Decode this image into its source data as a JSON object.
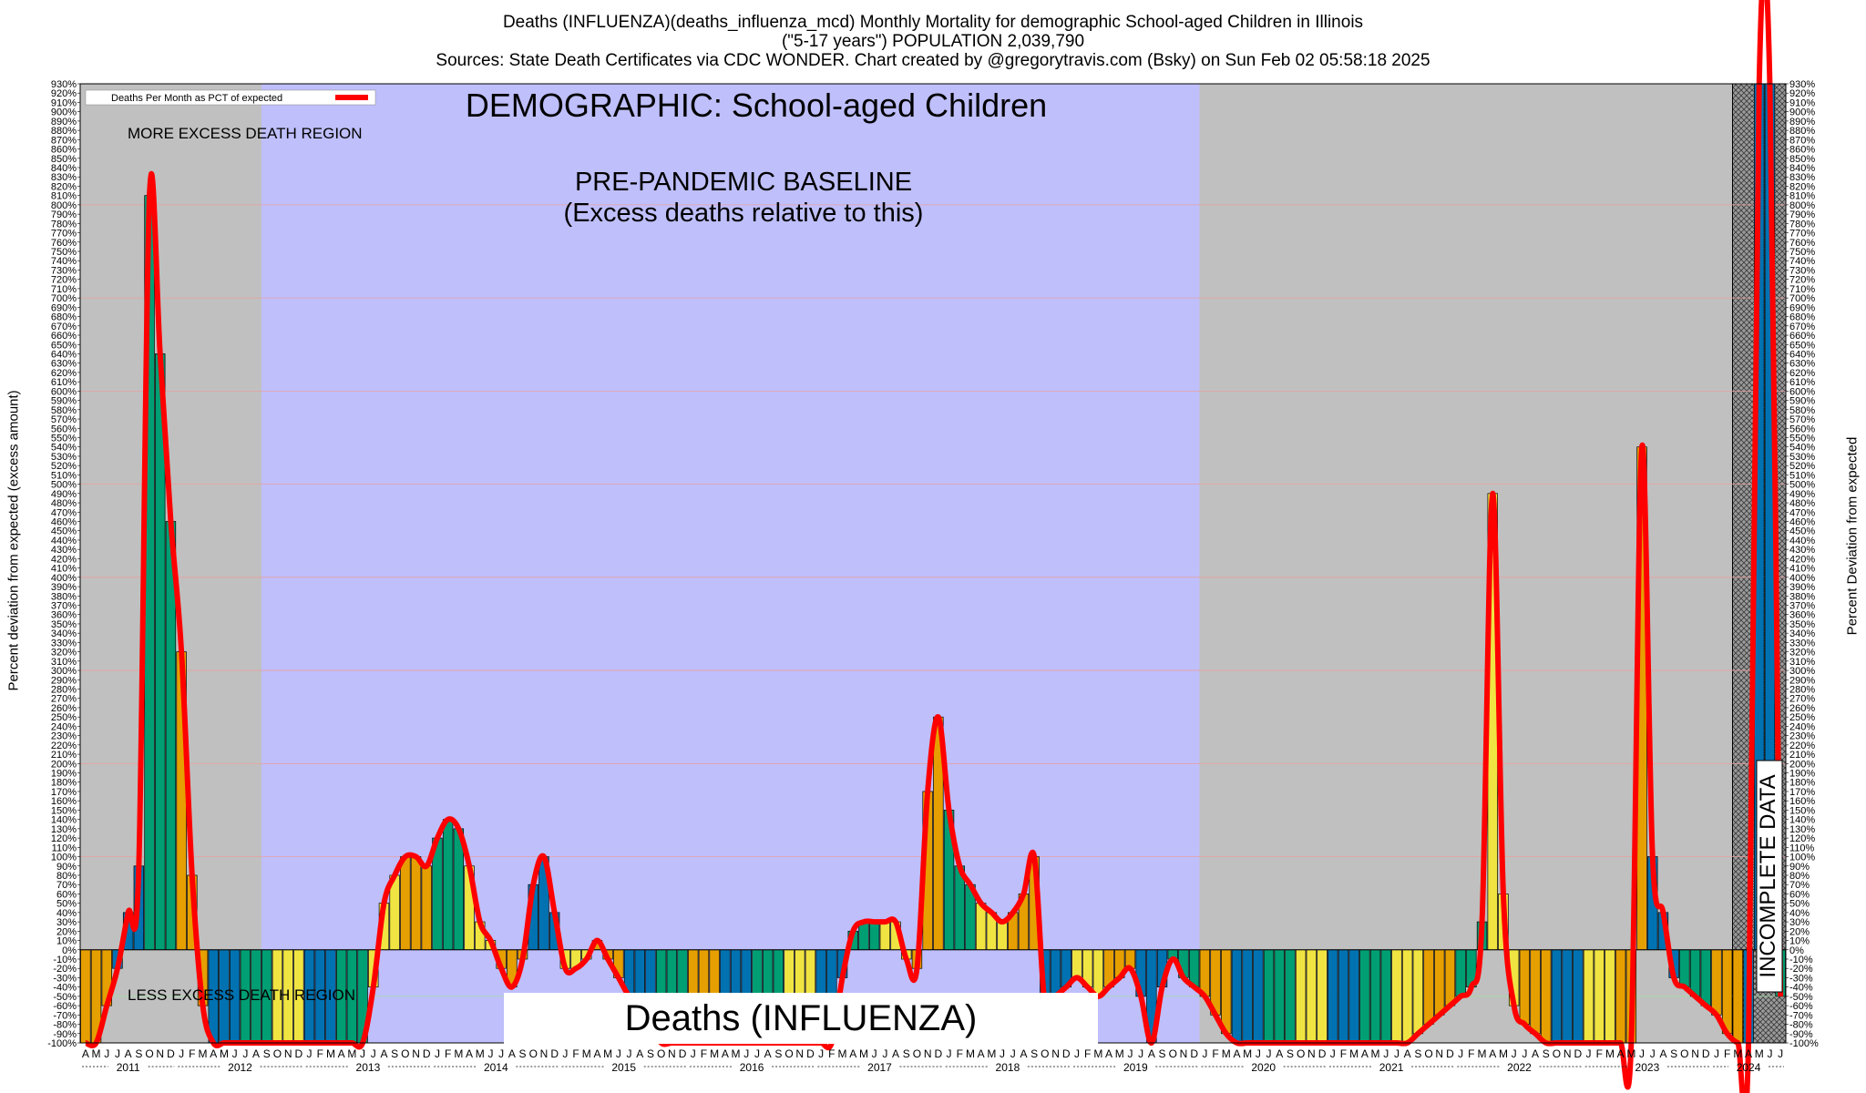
{
  "header": {
    "line1": "Deaths (INFLUENZA)(deaths_influenza_mcd) Monthly Mortality for demographic School-aged Children in Illinois",
    "line2": "(\"5-17 years\") POPULATION 2,039,790",
    "line3": "Sources: State Death Certificates via CDC WONDER.               Chart created by @gregorytravis.com (Bsky) on Sun Feb 02 05:58:18 2025"
  },
  "chart_data": {
    "type": "bar",
    "ylabel_left": "Percent deviation from expected (excess amount)",
    "ylabel_right": "Percent Deviation from expected",
    "ylim": [
      -100,
      930
    ],
    "legend": {
      "label": "Deaths Per Month as PCT of expected",
      "placement": "top-left"
    },
    "annotations": {
      "demographic": "DEMOGRAPHIC: School-aged Children",
      "more_region": "MORE EXCESS DEATH REGION",
      "less_region": "LESS EXCESS DEATH REGION",
      "baseline_line1": "PRE-PANDEMIC BASELINE",
      "baseline_line2": "(Excess deaths relative to this)",
      "incomplete": "INCOMPLETE DATA",
      "bottom_title": "Deaths (INFLUENZA)"
    },
    "year_labels": [
      "2011",
      "2012",
      "2013",
      "2014",
      "2015",
      "2016",
      "2017",
      "2018",
      "2019",
      "2020",
      "2021",
      "2022",
      "2023",
      "2024"
    ],
    "month_letters": [
      "J",
      "F",
      "M",
      "A",
      "M",
      "J",
      "J",
      "A",
      "S",
      "O",
      "N",
      "D"
    ],
    "start": "2011-04",
    "baseline_range": [
      "2012-09",
      "2020-01"
    ],
    "incomplete_from": "2024-03",
    "y_tick_labels": [
      "930%",
      "920%",
      "910%",
      "900%",
      "890%",
      "880%",
      "870%",
      "860%",
      "850%",
      "840%",
      "830%",
      "820%",
      "810%",
      "800%",
      "790%",
      "780%",
      "770%",
      "760%",
      "750%",
      "740%",
      "730%",
      "720%",
      "710%",
      "700%",
      "690%",
      "680%",
      "670%",
      "660%",
      "650%",
      "640%",
      "630%",
      "620%",
      "610%",
      "600%",
      "590%",
      "580%",
      "570%",
      "560%",
      "550%",
      "540%",
      "530%",
      "520%",
      "510%",
      "500%",
      "490%",
      "480%",
      "470%",
      "460%",
      "450%",
      "440%",
      "430%",
      "420%",
      "410%",
      "400%",
      "390%",
      "380%",
      "370%",
      "360%",
      "350%",
      "340%",
      "330%",
      "320%",
      "310%",
      "300%",
      "290%",
      "280%",
      "270%",
      "260%",
      "250%",
      "240%",
      "230%",
      "220%",
      "210%",
      "200%",
      "190%",
      "180%",
      "170%",
      "160%",
      "150%",
      "140%",
      "130%",
      "120%",
      "110%",
      "100%",
      "90%",
      "80%",
      "70%",
      "60%",
      "50%",
      "40%",
      "30%",
      "20%",
      "10%",
      "0%",
      "-10%",
      "-20%",
      "-30%",
      "-40%",
      "-50%",
      "-60%",
      "-70%",
      "-80%",
      "-90%",
      "-100%"
    ],
    "values": [
      -100,
      -100,
      -60,
      -20,
      40,
      90,
      810,
      640,
      460,
      320,
      80,
      -60,
      -100,
      -100,
      -100,
      -100,
      -100,
      -100,
      -100,
      -100,
      -100,
      -100,
      -100,
      -100,
      -100,
      -100,
      -100,
      -40,
      50,
      80,
      100,
      100,
      90,
      120,
      140,
      130,
      90,
      30,
      10,
      -20,
      -40,
      -10,
      70,
      100,
      40,
      -20,
      -20,
      -10,
      10,
      -10,
      -30,
      -50,
      -60,
      -80,
      -100,
      -100,
      -100,
      -100,
      -100,
      -100,
      -100,
      -100,
      -100,
      -100,
      -100,
      -100,
      -100,
      -100,
      -100,
      -100,
      -100,
      -30,
      20,
      30,
      30,
      30,
      30,
      -10,
      -20,
      170,
      250,
      150,
      90,
      70,
      50,
      40,
      30,
      40,
      60,
      100,
      -60,
      -50,
      -40,
      -30,
      -40,
      -50,
      -40,
      -30,
      -20,
      -50,
      -100,
      -40,
      -10,
      -30,
      -40,
      -50,
      -70,
      -90,
      -100,
      -100,
      -100,
      -100,
      -100,
      -100,
      -100,
      -100,
      -100,
      -100,
      -100,
      -100,
      -100,
      -100,
      -100,
      -100,
      -100,
      -90,
      -80,
      -70,
      -60,
      -50,
      -40,
      30,
      490,
      60,
      -60,
      -80,
      -90,
      -100,
      -100,
      -100,
      -100,
      -100,
      -100,
      -100,
      -100,
      -100,
      540,
      100,
      40,
      -30,
      -40,
      -50,
      -60,
      -70,
      -90,
      -100,
      -100,
      930,
      930,
      -50
    ],
    "colors": {
      "region_grey": "#c0c0c0",
      "baseline_blue": "#bfbffc",
      "line_red": "#ff0000",
      "bar_yellow": "#f0e442",
      "bar_orange": "#e69f00",
      "bar_blue": "#0072b2",
      "bar_green": "#009e73"
    }
  }
}
